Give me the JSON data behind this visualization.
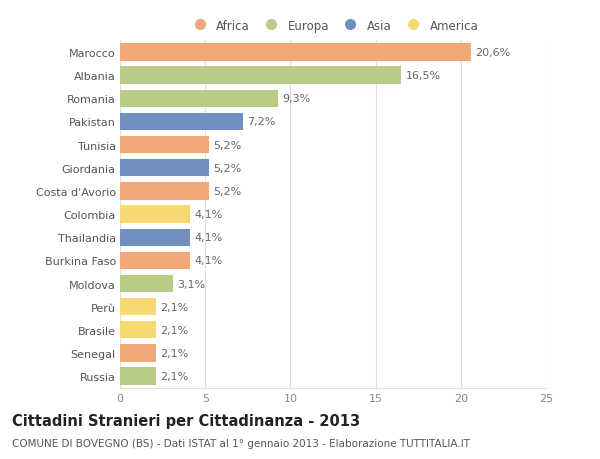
{
  "countries": [
    "Marocco",
    "Albania",
    "Romania",
    "Pakistan",
    "Tunisia",
    "Giordania",
    "Costa d'Avorio",
    "Colombia",
    "Thailandia",
    "Burkina Faso",
    "Moldova",
    "Perù",
    "Brasile",
    "Senegal",
    "Russia"
  ],
  "values": [
    20.6,
    16.5,
    9.3,
    7.2,
    5.2,
    5.2,
    5.2,
    4.1,
    4.1,
    4.1,
    3.1,
    2.1,
    2.1,
    2.1,
    2.1
  ],
  "labels": [
    "20,6%",
    "16,5%",
    "9,3%",
    "7,2%",
    "5,2%",
    "5,2%",
    "5,2%",
    "4,1%",
    "4,1%",
    "4,1%",
    "3,1%",
    "2,1%",
    "2,1%",
    "2,1%",
    "2,1%"
  ],
  "continents": [
    "Africa",
    "Europa",
    "Europa",
    "Asia",
    "Africa",
    "Asia",
    "Africa",
    "America",
    "Asia",
    "Africa",
    "Europa",
    "America",
    "America",
    "Africa",
    "Europa"
  ],
  "colors": {
    "Africa": "#F0A878",
    "Europa": "#B8CC88",
    "Asia": "#7090C0",
    "America": "#F8D870"
  },
  "legend_order": [
    "Africa",
    "Europa",
    "Asia",
    "America"
  ],
  "title": "Cittadini Stranieri per Cittadinanza - 2013",
  "subtitle": "COMUNE DI BOVEGNO (BS) - Dati ISTAT al 1° gennaio 2013 - Elaborazione TUTTITALIA.IT",
  "xlim": [
    0,
    25
  ],
  "xticks": [
    0,
    5,
    10,
    15,
    20,
    25
  ],
  "background_color": "#ffffff",
  "grid_color": "#e0e0e0",
  "bar_height": 0.75,
  "label_fontsize": 8,
  "tick_fontsize": 8,
  "title_fontsize": 10.5,
  "subtitle_fontsize": 7.5
}
